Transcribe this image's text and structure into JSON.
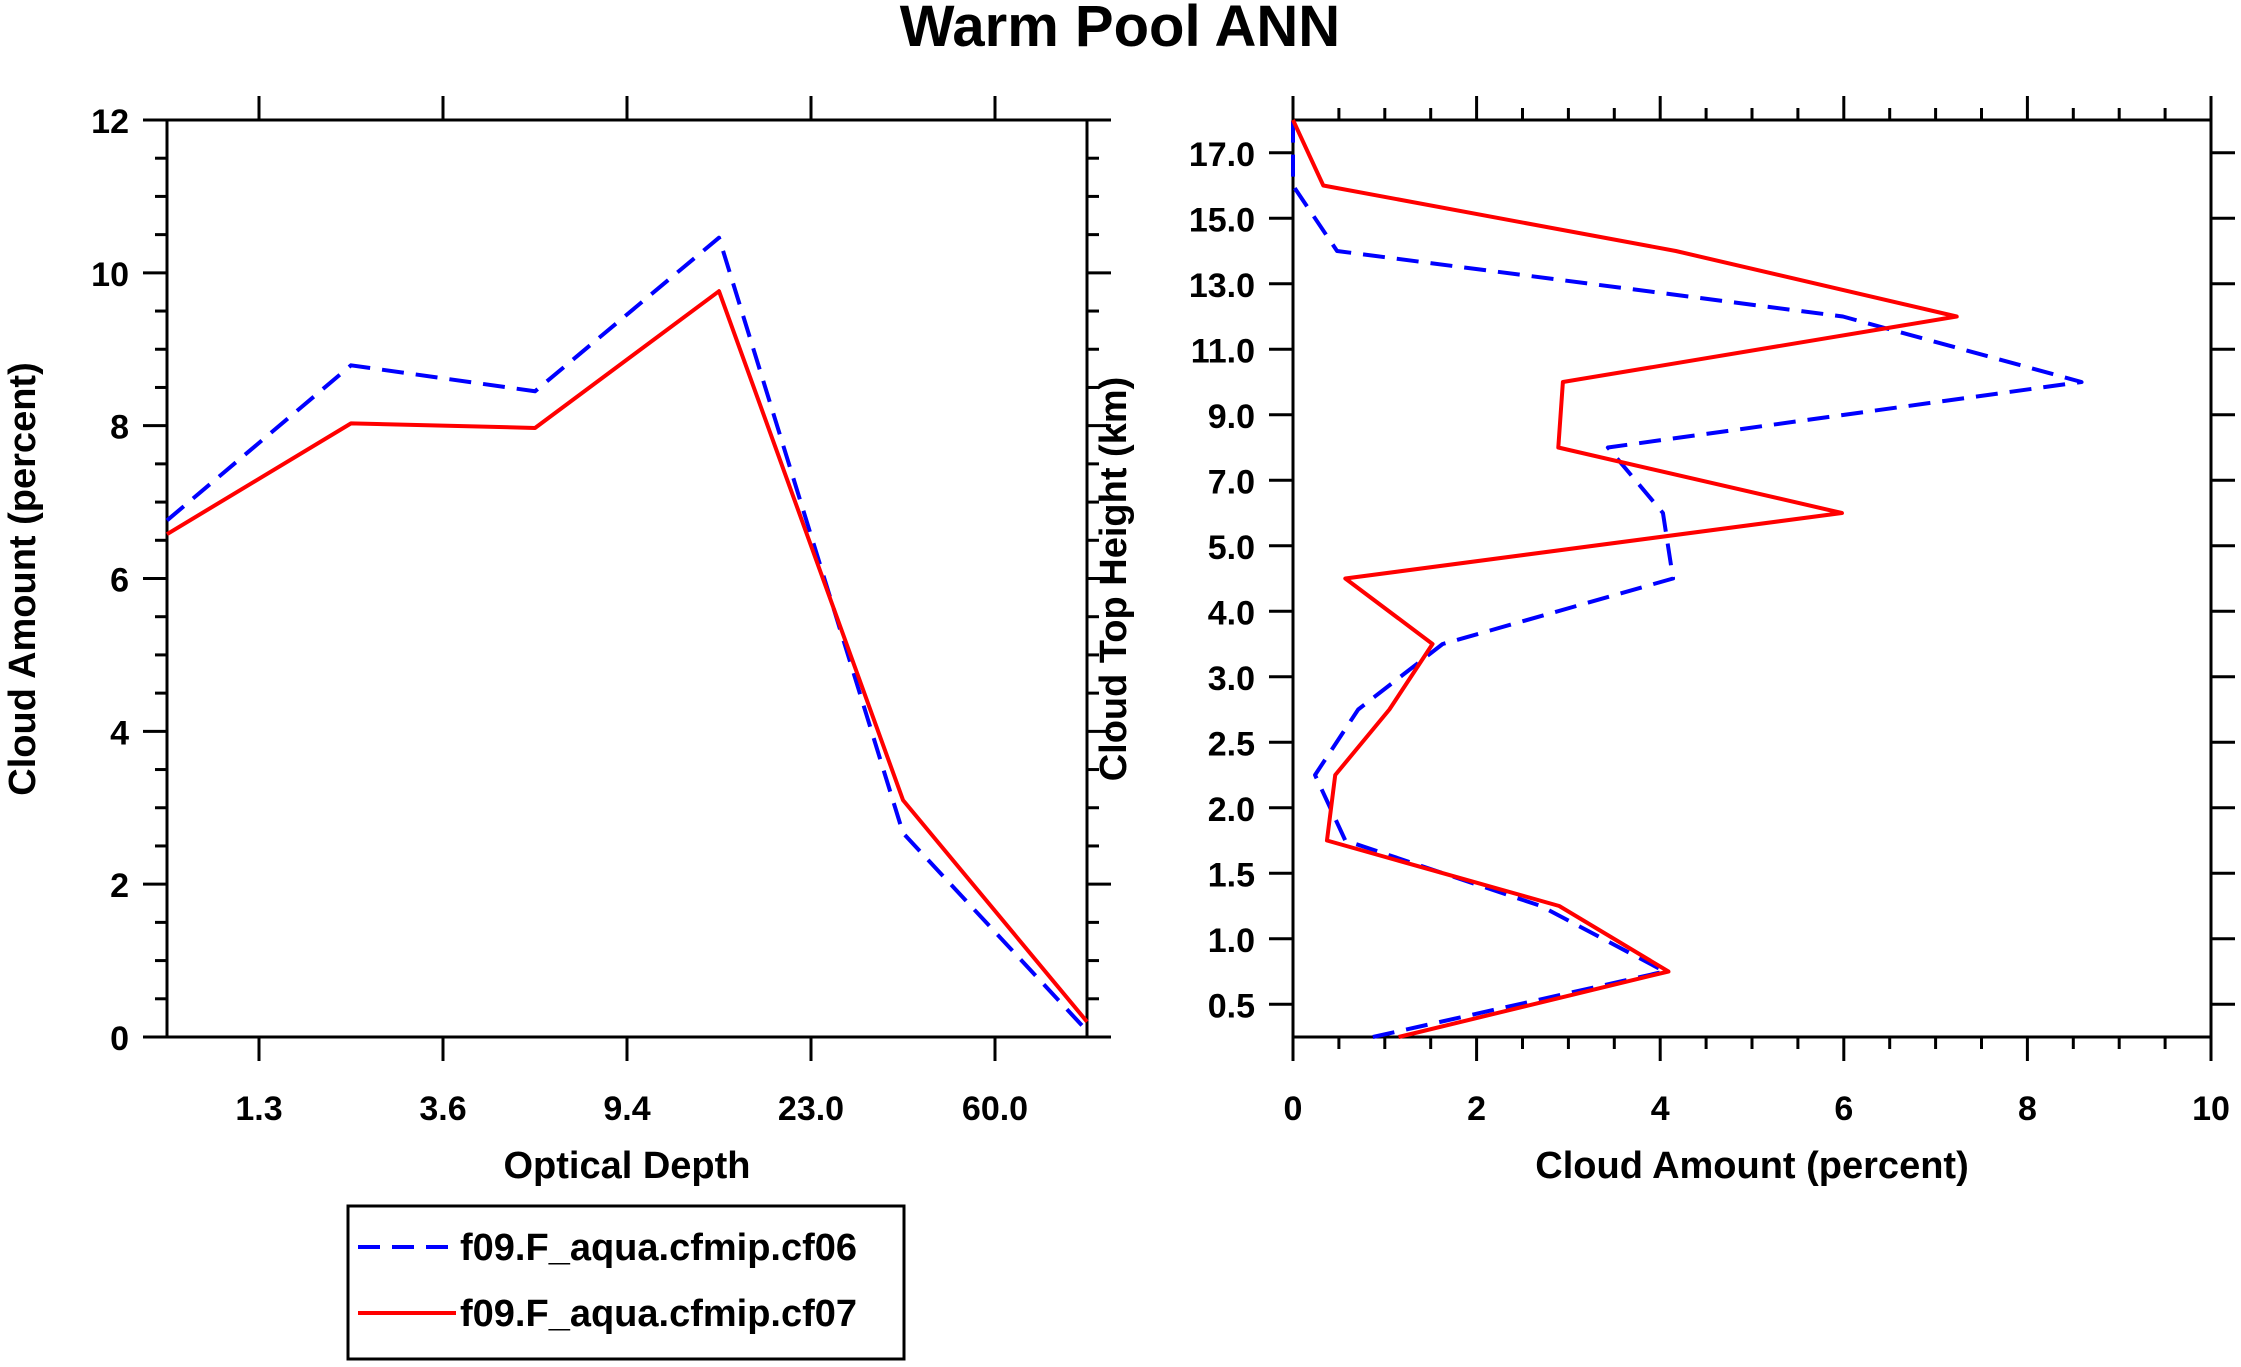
{
  "title": "Warm Pool ANN",
  "chart_data": [
    {
      "type": "line",
      "xlabel": "Optical Depth",
      "ylabel": "Cloud Amount (percent)",
      "xtick_labels": [
        "1.3",
        "3.6",
        "9.4",
        "23.0",
        "60.0"
      ],
      "ytick_labels": [
        "0",
        "2",
        "4",
        "6",
        "8",
        "10",
        "12"
      ],
      "ylim": [
        0,
        12
      ],
      "x_bins": 6,
      "series": [
        {
          "name": "f09.F_aqua.cfmip.cf06",
          "color": "#0000ff",
          "dash": true,
          "values": [
            6.76,
            8.79,
            8.45,
            10.46,
            2.67,
            0.08
          ]
        },
        {
          "name": "f09.F_aqua.cfmip.cf07",
          "color": "#ff0000",
          "dash": false,
          "values": [
            6.58,
            8.03,
            7.97,
            9.76,
            3.1,
            0.2
          ]
        }
      ]
    },
    {
      "type": "line",
      "orientation": "vertical-profile",
      "xlabel": "Cloud Amount (percent)",
      "ylabel": "Cloud Top Height (km)",
      "xtick_labels": [
        "0",
        "2",
        "4",
        "6",
        "8",
        "10"
      ],
      "xlim": [
        0,
        10
      ],
      "ytick_labels": [
        "0.5",
        "1.0",
        "1.5",
        "2.0",
        "2.5",
        "3.0",
        "4.0",
        "5.0",
        "7.0",
        "9.0",
        "11.0",
        "13.0",
        "15.0",
        "17.0"
      ],
      "heights_km": [
        0.25,
        0.75,
        1.25,
        1.75,
        2.25,
        2.75,
        3.5,
        4.5,
        6,
        8,
        10,
        12,
        14,
        16,
        18
      ],
      "series": [
        {
          "name": "f09.F_aqua.cfmip.cf06",
          "color": "#0000ff",
          "dash": true,
          "values": [
            0.87,
            4.05,
            2.7,
            0.57,
            0.24,
            0.71,
            1.63,
            4.14,
            4.03,
            3.43,
            8.59,
            5.99,
            0.48,
            0.0,
            0.0
          ]
        },
        {
          "name": "f09.F_aqua.cfmip.cf07",
          "color": "#ff0000",
          "dash": false,
          "values": [
            1.15,
            4.09,
            2.9,
            0.37,
            0.46,
            1.05,
            1.52,
            0.57,
            5.98,
            2.89,
            2.94,
            7.23,
            4.17,
            0.33,
            0.0
          ]
        }
      ]
    }
  ],
  "legend": {
    "placement": "bottom-left",
    "entries": [
      "f09.F_aqua.cfmip.cf06",
      "f09.F_aqua.cfmip.cf07"
    ]
  }
}
